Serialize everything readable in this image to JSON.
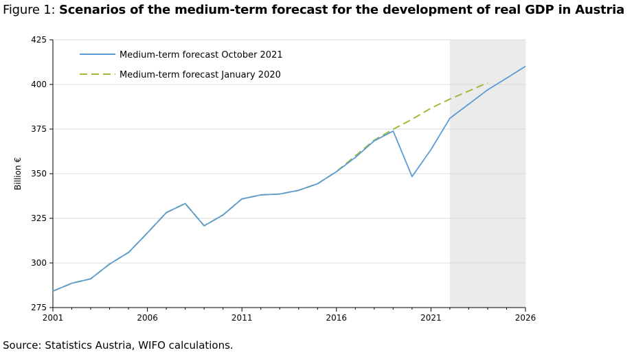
{
  "title_prefix": "Figure 1:",
  "title_main": "Scenarios of the medium-term forecast for the development of real GDP in Austria",
  "source": "Source: Statistics Austria, WIFO calculations.",
  "chart_data": {
    "type": "line",
    "ylabel": "Billion €",
    "xlabel": "",
    "ylim": [
      275,
      425
    ],
    "xlim": [
      2001,
      2026
    ],
    "yticks": [
      275,
      300,
      325,
      350,
      375,
      400,
      425
    ],
    "xticks": [
      2001,
      2006,
      2011,
      2016,
      2021,
      2026
    ],
    "shaded_region": [
      2022,
      2026
    ],
    "shade_color": "#ebebeb",
    "grid": "horizontal",
    "legend_position": "top-left",
    "series": [
      {
        "name": "Medium-term forecast October 2021",
        "color": "#5b9bd5",
        "style": "solid",
        "x": [
          2001,
          2002,
          2003,
          2004,
          2005,
          2006,
          2007,
          2008,
          2009,
          2010,
          2011,
          2012,
          2013,
          2014,
          2015,
          2016,
          2017,
          2018,
          2019,
          2020,
          2021,
          2022,
          2023,
          2024,
          2025,
          2026
        ],
        "y": [
          284.2,
          288.6,
          291.1,
          299.4,
          305.9,
          316.8,
          328.2,
          333.3,
          320.8,
          326.9,
          335.9,
          338.1,
          338.6,
          340.7,
          344.4,
          351.1,
          359.1,
          368.4,
          373.9,
          348.4,
          363.5,
          381.0,
          389.0,
          397.0,
          403.5,
          410.2
        ]
      },
      {
        "name": "Medium-term forecast January 2020",
        "color": "#9bbb3a",
        "style": "dashed",
        "x": [
          2001,
          2002,
          2003,
          2004,
          2005,
          2006,
          2007,
          2008,
          2009,
          2010,
          2011,
          2012,
          2013,
          2014,
          2015,
          2016,
          2017,
          2018,
          2019,
          2020,
          2021,
          2022,
          2023,
          2024
        ],
        "y": [
          284.2,
          288.6,
          291.1,
          299.4,
          305.9,
          316.8,
          328.2,
          333.3,
          320.8,
          326.9,
          335.9,
          338.1,
          338.6,
          340.7,
          344.4,
          351.2,
          360.0,
          368.8,
          374.9,
          380.5,
          386.7,
          391.8,
          396.3,
          401.0
        ]
      }
    ]
  }
}
